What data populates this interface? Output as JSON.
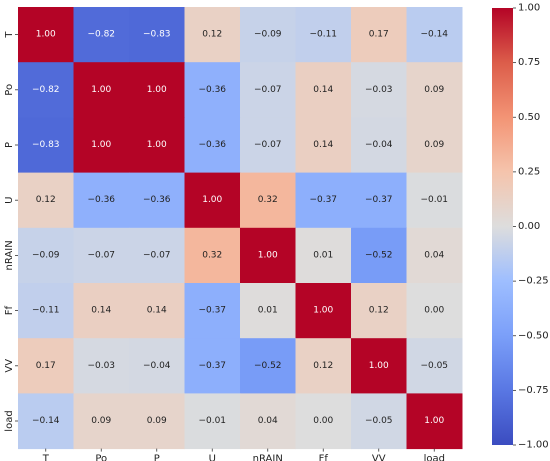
{
  "chart_data": {
    "type": "heatmap",
    "title": "",
    "xlabel": "",
    "ylabel": "",
    "variables": [
      "T",
      "Po",
      "P",
      "U",
      "nRAIN",
      "Ff",
      "VV",
      "load"
    ],
    "value_labels": [
      [
        "1.00",
        "−0.82",
        "−0.83",
        "0.12",
        "−0.09",
        "−0.11",
        "0.17",
        "−0.14"
      ],
      [
        "−0.82",
        "1.00",
        "1.00",
        "−0.36",
        "−0.07",
        "0.14",
        "−0.03",
        "0.09"
      ],
      [
        "−0.83",
        "1.00",
        "1.00",
        "−0.36",
        "−0.07",
        "0.14",
        "−0.04",
        "0.09"
      ],
      [
        "0.12",
        "−0.36",
        "−0.36",
        "1.00",
        "0.32",
        "−0.37",
        "−0.37",
        "−0.01"
      ],
      [
        "−0.09",
        "−0.07",
        "−0.07",
        "0.32",
        "1.00",
        "0.01",
        "−0.52",
        "0.04"
      ],
      [
        "−0.11",
        "0.14",
        "0.14",
        "−0.37",
        "0.01",
        "1.00",
        "0.12",
        "0.00"
      ],
      [
        "0.17",
        "−0.03",
        "−0.04",
        "−0.37",
        "−0.52",
        "0.12",
        "1.00",
        "−0.05"
      ],
      [
        "−0.14",
        "0.09",
        "0.09",
        "−0.01",
        "0.04",
        "0.00",
        "−0.05",
        "1.00"
      ]
    ],
    "colorbar": {
      "range": [
        -1.0,
        1.0
      ],
      "ticks": [
        1.0,
        0.75,
        0.5,
        0.25,
        0.0,
        -0.25,
        -0.5,
        -0.75,
        -1.0
      ],
      "tick_labels": [
        "1.00",
        "0.75",
        "0.50",
        "0.25",
        "0.00",
        "−0.25",
        "−0.50",
        "−0.75",
        "−1.00"
      ],
      "colormap": "coolwarm",
      "color_low": "#3b4cc0",
      "color_mid": "#dddddd",
      "color_high": "#b40426"
    }
  }
}
